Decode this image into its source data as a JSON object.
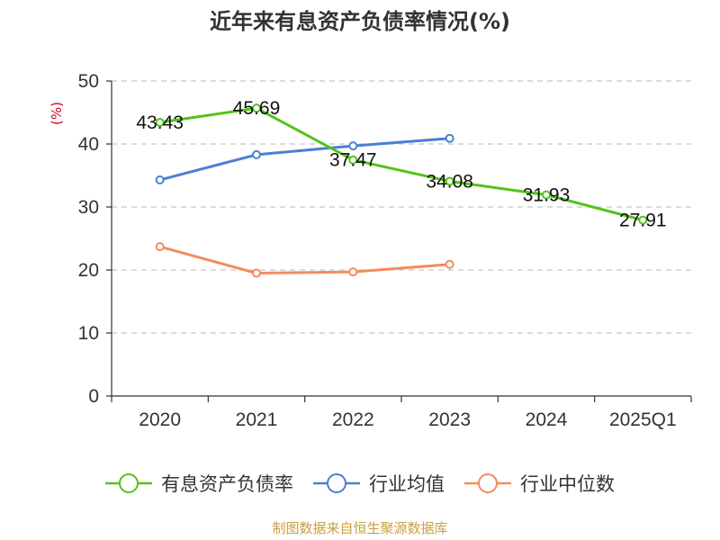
{
  "chart_data": {
    "type": "line",
    "title": "近年来有息资产负债率情况(%)",
    "ylabel": "(%)",
    "xlabel": "",
    "ylim": [
      0,
      50
    ],
    "yticks": [
      0,
      10,
      20,
      30,
      40,
      50
    ],
    "categories": [
      "2020",
      "2021",
      "2022",
      "2023",
      "2024",
      "2025Q1"
    ],
    "grid": true,
    "legend_position": "bottom",
    "series": [
      {
        "name": "有息资产负债率",
        "color": "#52c41a",
        "values": [
          43.43,
          45.69,
          37.47,
          34.08,
          31.93,
          27.91
        ],
        "labels": [
          "43.43",
          "45.69",
          "37.47",
          "34.08",
          "31.93",
          "27.91"
        ]
      },
      {
        "name": "行业均值",
        "color": "#4a7fd6",
        "values": [
          34.3,
          38.3,
          39.7,
          40.9,
          null,
          null
        ]
      },
      {
        "name": "行业中位数",
        "color": "#f28c5e",
        "values": [
          23.7,
          19.5,
          19.7,
          20.9,
          null,
          null
        ]
      }
    ],
    "source": "制图数据来自恒生聚源数据库"
  }
}
